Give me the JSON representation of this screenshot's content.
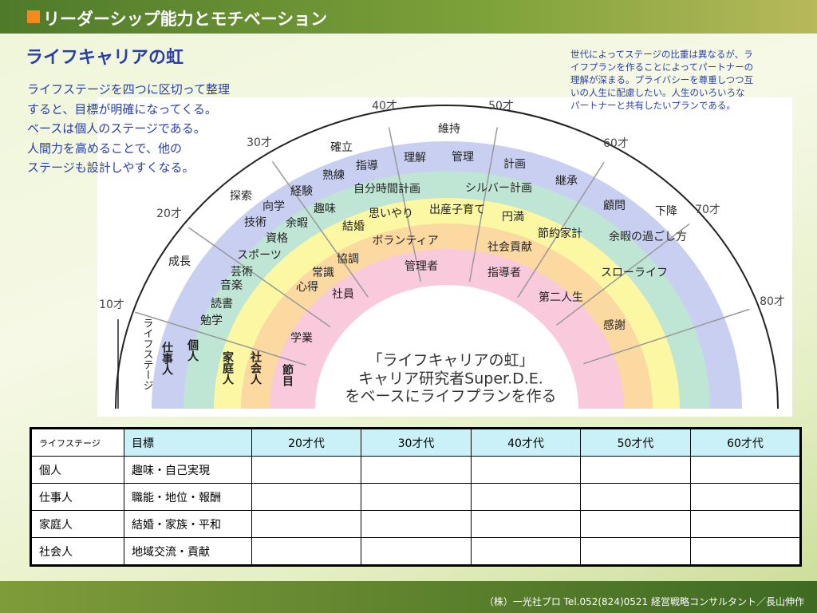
{
  "header": {
    "title": "リーダーシップ能力とモチベーション"
  },
  "heading": "ライフキャリアの虹",
  "intro_lines": [
    "ライフステージを四つに区切って整理",
    "すると、目標が明確になってくる。",
    "ベースは個人のステージである。",
    "人間力を高めることで、他の",
    "ステージも設計しやすくなる。"
  ],
  "note_lines": [
    "世代によってステージの比重は異なるが、ラ",
    "イフプランを作ることによってパートナーの",
    "理解が深まる。プライバシーを尊重しつつ互",
    "いの人生に配慮したい。人生のいろいろな",
    "パートナーと共有したいプランである。"
  ],
  "diagram": {
    "ages": [
      "10才",
      "20才",
      "30才",
      "40才",
      "50才",
      "60才",
      "70才",
      "80才"
    ],
    "stages": [
      "ライフステージ",
      "仕事人",
      "個人",
      "家庭人",
      "社会人",
      "節目"
    ],
    "words": [
      "維持",
      "確立",
      "指導",
      "理解",
      "管理",
      "計画",
      "継承",
      "熟練",
      "経験",
      "探索",
      "自分時間計画",
      "シルバー計画",
      "顧問",
      "下降",
      "向学",
      "趣味",
      "思いやり",
      "出産子育て",
      "円満",
      "技術",
      "余暇",
      "結婚",
      "節約家計",
      "余暇の過ごし方",
      "資格",
      "ボランティア",
      "社会貢献",
      "成長",
      "スポーツ",
      "協調",
      "管理者",
      "指導者",
      "スローライフ",
      "芸術",
      "常識",
      "音楽",
      "心得",
      "社員",
      "第二人生",
      "読書",
      "勉学",
      "感謝",
      "学業"
    ],
    "caption": [
      "「ライフキャリアの虹」",
      "キャリア研究者Super.D.E.",
      "をベースにライフプランを作る"
    ]
  },
  "table": {
    "header": [
      "ライフステージ",
      "目標",
      "20才代",
      "30才代",
      "40才代",
      "50才代",
      "60才代"
    ],
    "rows": [
      [
        "個人",
        "趣味・自己実現"
      ],
      [
        "仕事人",
        "職能・地位・報酬"
      ],
      [
        "家庭人",
        "結婚・家族・平和"
      ],
      [
        "社会人",
        "地域交流・貢献"
      ]
    ]
  },
  "footer": "（株）一光社プロ Tel.052(824)0521 経営戦略コンサルタント／長山伸作"
}
